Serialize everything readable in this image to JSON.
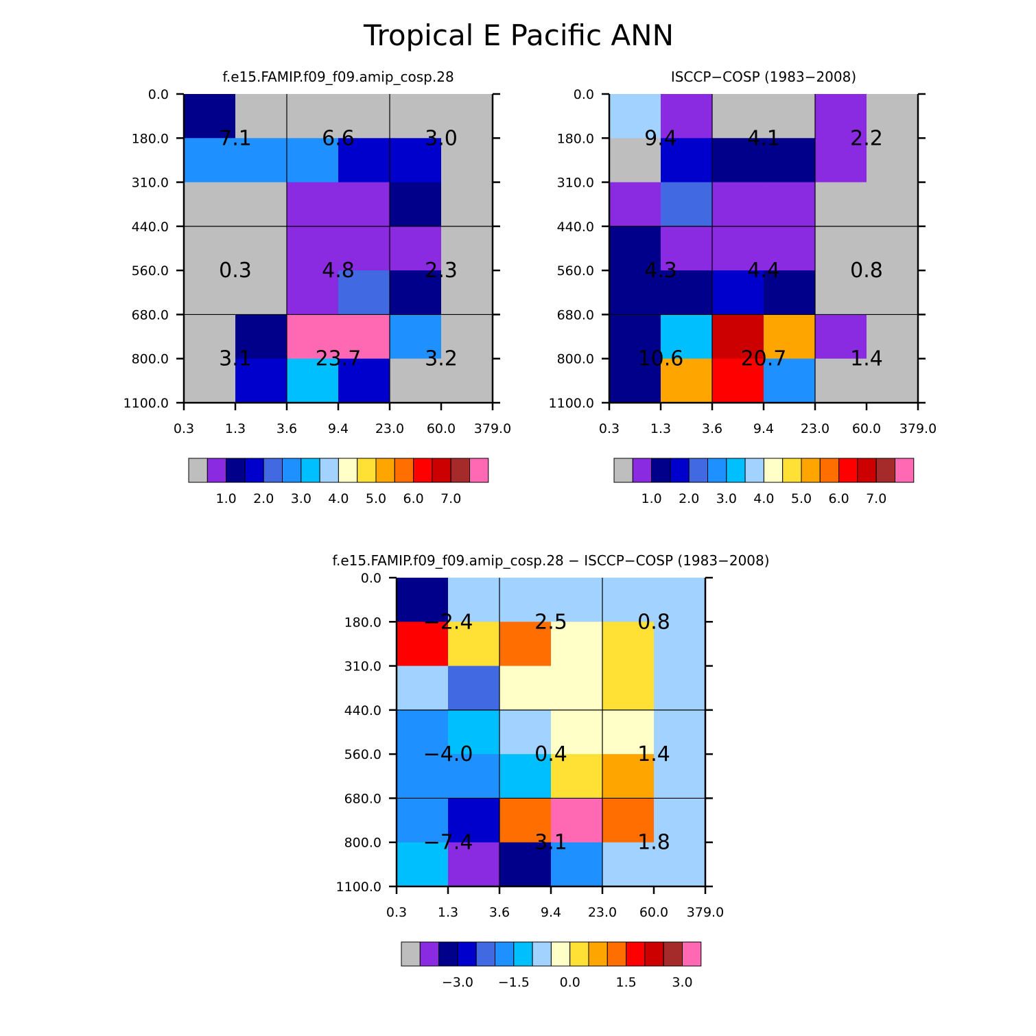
{
  "title": "Tropical E Pacific ANN",
  "chart_data": [
    {
      "type": "heatmap",
      "title": "f.e15.FAMIP.f09_f09.amip_cosp.28",
      "x_edges": [
        "0.3",
        "1.3",
        "3.6",
        "9.4",
        "23.0",
        "60.0",
        "379.0"
      ],
      "y_edges": [
        "0.0",
        "180.0",
        "310.0",
        "440.0",
        "560.0",
        "680.0",
        "800.0",
        "1100.0"
      ],
      "cell_colors": [
        [
          "#00008B",
          "#BEBEBE",
          "#BEBEBE",
          "#BEBEBE",
          "#BEBEBE",
          "#BEBEBE"
        ],
        [
          "#1E90FF",
          "#1E90FF",
          "#1E90FF",
          "#0000CD",
          "#0000CD",
          "#BEBEBE"
        ],
        [
          "#BEBEBE",
          "#BEBEBE",
          "#8A2BE2",
          "#8A2BE2",
          "#00008B",
          "#BEBEBE"
        ],
        [
          "#BEBEBE",
          "#BEBEBE",
          "#8A2BE2",
          "#8A2BE2",
          "#8A2BE2",
          "#BEBEBE"
        ],
        [
          "#BEBEBE",
          "#BEBEBE",
          "#8A2BE2",
          "#4169E1",
          "#00008B",
          "#BEBEBE"
        ],
        [
          "#BEBEBE",
          "#00008B",
          "#FF69B4",
          "#FF69B4",
          "#1E90FF",
          "#BEBEBE"
        ],
        [
          "#BEBEBE",
          "#0000CD",
          "#00BFFF",
          "#0000CD",
          "#BEBEBE",
          "#BEBEBE"
        ]
      ],
      "block_values": [
        [
          "7.1",
          "6.6",
          "3.0"
        ],
        [
          "0.3",
          "4.8",
          "2.3"
        ],
        [
          "3.1",
          "23.7",
          "3.2"
        ]
      ],
      "colorbar": {
        "colors": [
          "#BEBEBE",
          "#8A2BE2",
          "#00008B",
          "#0000CD",
          "#4169E1",
          "#1E90FF",
          "#00BFFF",
          "#A2D2FF",
          "#FFFFC8",
          "#FFE135",
          "#FFA500",
          "#FF6E00",
          "#FF0000",
          "#CD0000",
          "#A52A2A",
          "#FF69B4"
        ],
        "labels": [
          "1.0",
          "2.0",
          "3.0",
          "4.0",
          "5.0",
          "6.0",
          "7.0"
        ]
      }
    },
    {
      "type": "heatmap",
      "title": "ISCCP−COSP (1983−2008)",
      "x_edges": [
        "0.3",
        "1.3",
        "3.6",
        "9.4",
        "23.0",
        "60.0",
        "379.0"
      ],
      "y_edges": [
        "0.0",
        "180.0",
        "310.0",
        "440.0",
        "560.0",
        "680.0",
        "800.0",
        "1100.0"
      ],
      "cell_colors": [
        [
          "#A2D2FF",
          "#8A2BE2",
          "#BEBEBE",
          "#BEBEBE",
          "#8A2BE2",
          "#BEBEBE"
        ],
        [
          "#BEBEBE",
          "#0000CD",
          "#00008B",
          "#00008B",
          "#8A2BE2",
          "#BEBEBE"
        ],
        [
          "#8A2BE2",
          "#4169E1",
          "#8A2BE2",
          "#8A2BE2",
          "#BEBEBE",
          "#BEBEBE"
        ],
        [
          "#00008B",
          "#8A2BE2",
          "#8A2BE2",
          "#8A2BE2",
          "#BEBEBE",
          "#BEBEBE"
        ],
        [
          "#00008B",
          "#00008B",
          "#0000CD",
          "#00008B",
          "#BEBEBE",
          "#BEBEBE"
        ],
        [
          "#00008B",
          "#00BFFF",
          "#CD0000",
          "#FFA500",
          "#8A2BE2",
          "#BEBEBE"
        ],
        [
          "#00008B",
          "#FFA500",
          "#FF0000",
          "#1E90FF",
          "#BEBEBE",
          "#BEBEBE"
        ]
      ],
      "block_values": [
        [
          "9.4",
          "4.1",
          "2.2"
        ],
        [
          "4.3",
          "4.4",
          "0.8"
        ],
        [
          "10.6",
          "20.7",
          "1.4"
        ]
      ],
      "colorbar": {
        "colors": [
          "#BEBEBE",
          "#8A2BE2",
          "#00008B",
          "#0000CD",
          "#4169E1",
          "#1E90FF",
          "#00BFFF",
          "#A2D2FF",
          "#FFFFC8",
          "#FFE135",
          "#FFA500",
          "#FF6E00",
          "#FF0000",
          "#CD0000",
          "#A52A2A",
          "#FF69B4"
        ],
        "labels": [
          "1.0",
          "2.0",
          "3.0",
          "4.0",
          "5.0",
          "6.0",
          "7.0"
        ]
      }
    },
    {
      "type": "heatmap",
      "title": "f.e15.FAMIP.f09_f09.amip_cosp.28 − ISCCP−COSP (1983−2008)",
      "x_edges": [
        "0.3",
        "1.3",
        "3.6",
        "9.4",
        "23.0",
        "60.0",
        "379.0"
      ],
      "y_edges": [
        "0.0",
        "180.0",
        "310.0",
        "440.0",
        "560.0",
        "680.0",
        "800.0",
        "1100.0"
      ],
      "cell_colors": [
        [
          "#00008B",
          "#A2D2FF",
          "#A2D2FF",
          "#A2D2FF",
          "#A2D2FF",
          "#A2D2FF"
        ],
        [
          "#FF0000",
          "#FFE135",
          "#FF6E00",
          "#FFFFC8",
          "#FFE135",
          "#A2D2FF"
        ],
        [
          "#A2D2FF",
          "#4169E1",
          "#FFFFC8",
          "#FFFFC8",
          "#FFE135",
          "#A2D2FF"
        ],
        [
          "#1E90FF",
          "#00BFFF",
          "#A2D2FF",
          "#FFFFC8",
          "#FFFFC8",
          "#A2D2FF"
        ],
        [
          "#1E90FF",
          "#1E90FF",
          "#00BFFF",
          "#FFE135",
          "#FFA500",
          "#A2D2FF"
        ],
        [
          "#1E90FF",
          "#0000CD",
          "#FF6E00",
          "#FF69B4",
          "#FF6E00",
          "#A2D2FF"
        ],
        [
          "#00BFFF",
          "#8A2BE2",
          "#00008B",
          "#1E90FF",
          "#A2D2FF",
          "#A2D2FF"
        ]
      ],
      "block_values": [
        [
          "−2.4",
          "2.5",
          "0.8"
        ],
        [
          "−4.0",
          "0.4",
          "1.4"
        ],
        [
          "−7.4",
          "3.1",
          "1.8"
        ]
      ],
      "colorbar": {
        "colors": [
          "#BEBEBE",
          "#8A2BE2",
          "#00008B",
          "#0000CD",
          "#4169E1",
          "#1E90FF",
          "#00BFFF",
          "#A2D2FF",
          "#FFFFC8",
          "#FFE135",
          "#FFA500",
          "#FF6E00",
          "#FF0000",
          "#CD0000",
          "#A52A2A",
          "#FF69B4"
        ],
        "labels": [
          "−3.0",
          "−1.5",
          "0.0",
          "1.5",
          "3.0"
        ]
      }
    }
  ]
}
